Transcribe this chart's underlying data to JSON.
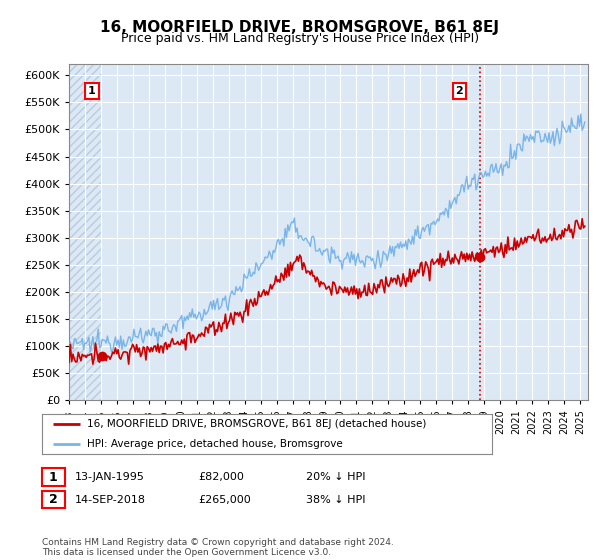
{
  "title": "16, MOORFIELD DRIVE, BROMSGROVE, B61 8EJ",
  "subtitle": "Price paid vs. HM Land Registry's House Price Index (HPI)",
  "ylabel_ticks": [
    "£0",
    "£50K",
    "£100K",
    "£150K",
    "£200K",
    "£250K",
    "£300K",
    "£350K",
    "£400K",
    "£450K",
    "£500K",
    "£550K",
    "£600K"
  ],
  "ylim": [
    0,
    620000
  ],
  "xlim_start": 1993.0,
  "xlim_end": 2025.5,
  "background_color": "#ffffff",
  "plot_bg_color": "#dce9f5",
  "hatch_color": "#b8ccdf",
  "grid_color": "#ffffff",
  "hpi_color": "#7ab4e8",
  "price_color": "#cc0000",
  "dashed_color": "#cc0000",
  "marker1_label": "1",
  "marker2_label": "2",
  "sale1_date": "13-JAN-1995",
  "sale1_price": "£82,000",
  "sale1_hpi": "20% ↓ HPI",
  "sale1_year": 1995.04,
  "sale1_value": 82000,
  "sale2_date": "14-SEP-2018",
  "sale2_price": "£265,000",
  "sale2_hpi": "38% ↓ HPI",
  "sale2_year": 2018.71,
  "sale2_value": 265000,
  "legend_line1": "16, MOORFIELD DRIVE, BROMSGROVE, B61 8EJ (detached house)",
  "legend_line2": "HPI: Average price, detached house, Bromsgrove",
  "footer": "Contains HM Land Registry data © Crown copyright and database right 2024.\nThis data is licensed under the Open Government Licence v3.0.",
  "title_fontsize": 11,
  "subtitle_fontsize": 9,
  "tick_fontsize": 8
}
